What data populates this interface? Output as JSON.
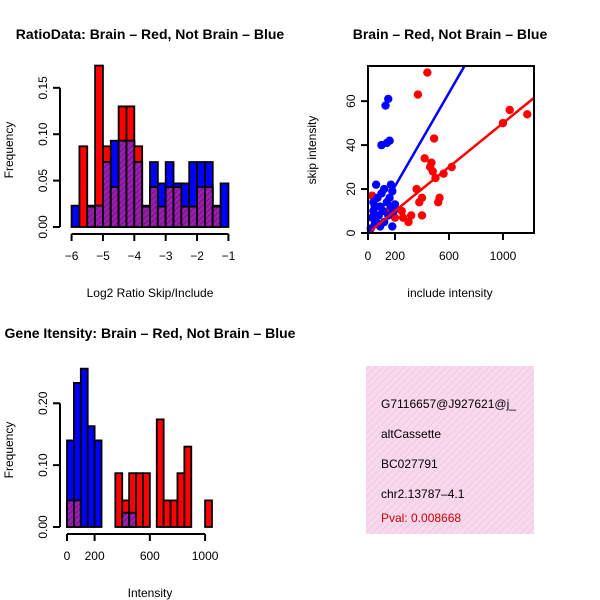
{
  "colors": {
    "red": "#ff0000",
    "blue": "#0000ff",
    "overlap": "#9b1fae",
    "pink": "#f8d8ec",
    "pval": "#cc0000"
  },
  "chart_data": [
    {
      "id": "ratio-hist",
      "type": "bar",
      "title": "RatioData: Brain – Red, Not Brain – Blue",
      "xlabel": "Log2 Ratio Skip/Include",
      "ylabel": "Frequency",
      "xlim": [
        -6.05,
        -0.95
      ],
      "ylim": [
        0,
        0.18
      ],
      "xticks": [
        -6,
        -5,
        -4,
        -3,
        -2,
        -1
      ],
      "yticks": [
        0.0,
        0.05,
        0.1,
        0.15
      ],
      "xtick_labels": [
        "−6",
        "−5",
        "−4",
        "−3",
        "−2",
        "−1"
      ],
      "ytick_labels": [
        "0.00",
        "0.05",
        "0.10",
        "0.15"
      ],
      "bin_width": 0.25,
      "x_start": -6.0,
      "series": [
        {
          "name": "Brain",
          "color": "red",
          "values": [
            0,
            0.087,
            0.022,
            0.174,
            0.087,
            0.043,
            0.13,
            0.13,
            0.087,
            0.022,
            0.043,
            0.022,
            0.043,
            0.043,
            0.022,
            0.022,
            0.043,
            0.043,
            0.022,
            0.0
          ]
        },
        {
          "name": "Not Brain",
          "color": "blue",
          "values": [
            0.023,
            0.0,
            0.023,
            0.023,
            0.07,
            0.093,
            0.093,
            0.093,
            0.07,
            0.023,
            0.07,
            0.047,
            0.07,
            0.047,
            0.047,
            0.07,
            0.07,
            0.07,
            0.023,
            0.047
          ]
        }
      ]
    },
    {
      "id": "scatter",
      "type": "scatter",
      "title": "Brain – Red, Not Brain – Blue",
      "xlabel": "include intensity",
      "ylabel": "skip intensity",
      "xlim": [
        0,
        1230
      ],
      "ylim": [
        0,
        76
      ],
      "xticks": [
        0,
        200,
        600,
        1000
      ],
      "yticks": [
        0,
        20,
        40,
        60
      ],
      "xtick_labels": [
        "0",
        "200",
        "600",
        "1000"
      ],
      "ytick_labels": [
        "0",
        "20",
        "40",
        "60"
      ],
      "series": [
        {
          "name": "Brain",
          "color": "red",
          "points": [
            [
              30,
              17
            ],
            [
              150,
              10
            ],
            [
              260,
              7
            ],
            [
              300,
              5
            ],
            [
              320,
              8
            ],
            [
              360,
              20
            ],
            [
              380,
              14
            ],
            [
              400,
              16
            ],
            [
              400,
              8
            ],
            [
              420,
              34
            ],
            [
              440,
              73
            ],
            [
              460,
              30
            ],
            [
              470,
              32
            ],
            [
              480,
              28
            ],
            [
              490,
              43
            ],
            [
              500,
              25
            ],
            [
              520,
              14
            ],
            [
              530,
              16
            ],
            [
              560,
              27
            ],
            [
              620,
              30
            ],
            [
              1000,
              50
            ],
            [
              1050,
              56
            ],
            [
              1180,
              54
            ],
            [
              370,
              63
            ],
            [
              250,
              10
            ],
            [
              200,
              7
            ]
          ],
          "fit": [
            [
              0,
              0
            ],
            [
              1230,
              61.5
            ]
          ]
        },
        {
          "name": "Not Brain",
          "color": "blue",
          "points": [
            [
              20,
              2
            ],
            [
              30,
              7
            ],
            [
              40,
              10
            ],
            [
              40,
              14
            ],
            [
              50,
              12
            ],
            [
              50,
              4
            ],
            [
              60,
              22
            ],
            [
              60,
              5
            ],
            [
              70,
              16
            ],
            [
              80,
              8
            ],
            [
              90,
              12
            ],
            [
              90,
              3
            ],
            [
              100,
              40
            ],
            [
              100,
              18
            ],
            [
              110,
              10
            ],
            [
              120,
              20
            ],
            [
              120,
              5
            ],
            [
              130,
              58
            ],
            [
              140,
              41
            ],
            [
              140,
              14
            ],
            [
              150,
              61
            ],
            [
              150,
              8
            ],
            [
              160,
              42
            ],
            [
              160,
              16
            ],
            [
              170,
              22
            ],
            [
              170,
              12
            ],
            [
              180,
              3
            ],
            [
              180,
              19
            ],
            [
              190,
              10
            ],
            [
              200,
              13
            ]
          ],
          "fit": [
            [
              0,
              0
            ],
            [
              715,
              76
            ]
          ]
        }
      ]
    },
    {
      "id": "intensity-hist",
      "type": "bar",
      "title": "Gene Itensity: Brain – Red, Not Brain – Blue",
      "xlabel": "Intensity",
      "ylabel": "Frequency",
      "xlim": [
        0,
        1195
      ],
      "ylim": [
        0,
        0.27
      ],
      "xticks": [
        0,
        200,
        600,
        1000
      ],
      "yticks": [
        0.0,
        0.1,
        0.2
      ],
      "xtick_labels": [
        "0",
        "200",
        "600",
        "1000"
      ],
      "ytick_labels": [
        "0.00",
        "0.10",
        "0.20"
      ],
      "bin_width": 50,
      "x_start": 0,
      "series": [
        {
          "name": "Brain",
          "color": "red",
          "values": [
            0.043,
            0.043,
            0.0,
            0.0,
            0.0,
            0.0,
            0.0,
            0.087,
            0.043,
            0.087,
            0.087,
            0.087,
            0.0,
            0.174,
            0.043,
            0.043,
            0.087,
            0.13,
            0.0,
            0.0,
            0.043,
            0.0,
            0.0
          ]
        },
        {
          "name": "Not Brain",
          "color": "blue",
          "values": [
            0.14,
            0.233,
            0.256,
            0.163,
            0.14,
            0.0,
            0.0,
            0.0,
            0.023,
            0.023,
            0.0,
            0.0,
            0.0,
            0.0,
            0.0,
            0.0,
            0.0,
            0.0,
            0.0,
            0.0,
            0.0,
            0.0,
            0.0
          ]
        }
      ]
    }
  ],
  "info_box": {
    "lines": [
      "G7116657@J927621@j_",
      "altCassette",
      "BC027791",
      "chr2.13787–4.1"
    ],
    "pval": "Pval: 0.008668"
  }
}
